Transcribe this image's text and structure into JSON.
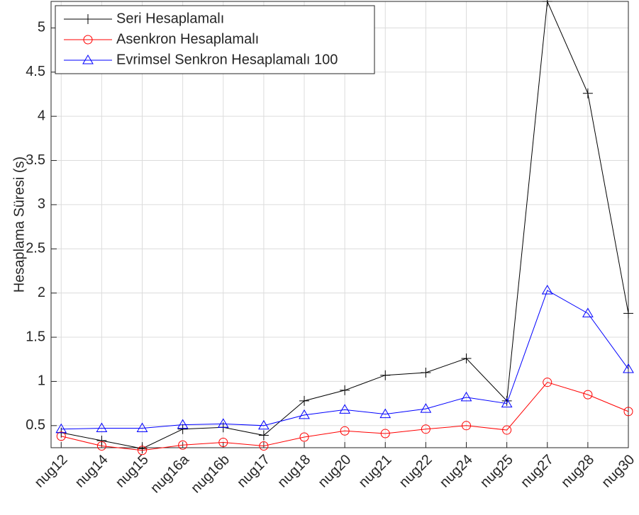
{
  "chart_data": {
    "type": "line",
    "ylabel": "Hesaplama Süresi (s)",
    "categories": [
      "nug12",
      "nug14",
      "nug15",
      "nug16a",
      "nug16b",
      "nug17",
      "nug18",
      "nug20",
      "nug21",
      "nug22",
      "nug24",
      "nug25",
      "nug27",
      "nug28",
      "nug30"
    ],
    "series": [
      {
        "name": "Seri Hesaplamalı",
        "color": "#000000",
        "marker": "+",
        "values": [
          0.42,
          0.33,
          0.24,
          0.46,
          0.48,
          0.39,
          0.78,
          0.9,
          1.07,
          1.1,
          1.26,
          0.78,
          5.3,
          4.26,
          1.77
        ]
      },
      {
        "name": "Asenkron Hesaplamalı",
        "color": "#ff0000",
        "marker": "o",
        "values": [
          0.38,
          0.27,
          0.22,
          0.28,
          0.31,
          0.27,
          0.37,
          0.44,
          0.41,
          0.46,
          0.5,
          0.45,
          0.99,
          0.85,
          0.66
        ]
      },
      {
        "name": "Evrimsel Senkron Hesaplamalı 100",
        "color": "#0000ff",
        "marker": "^",
        "values": [
          0.46,
          0.47,
          0.47,
          0.51,
          0.52,
          0.5,
          0.62,
          0.68,
          0.63,
          0.69,
          0.82,
          0.75,
          2.03,
          1.77,
          1.14
        ]
      }
    ],
    "ylim": [
      0.25,
      5.3
    ],
    "yticks": [
      0.5,
      1,
      1.5,
      2,
      2.5,
      3,
      3.5,
      4,
      4.5,
      5
    ],
    "grid": true,
    "legend": "upper-left"
  }
}
